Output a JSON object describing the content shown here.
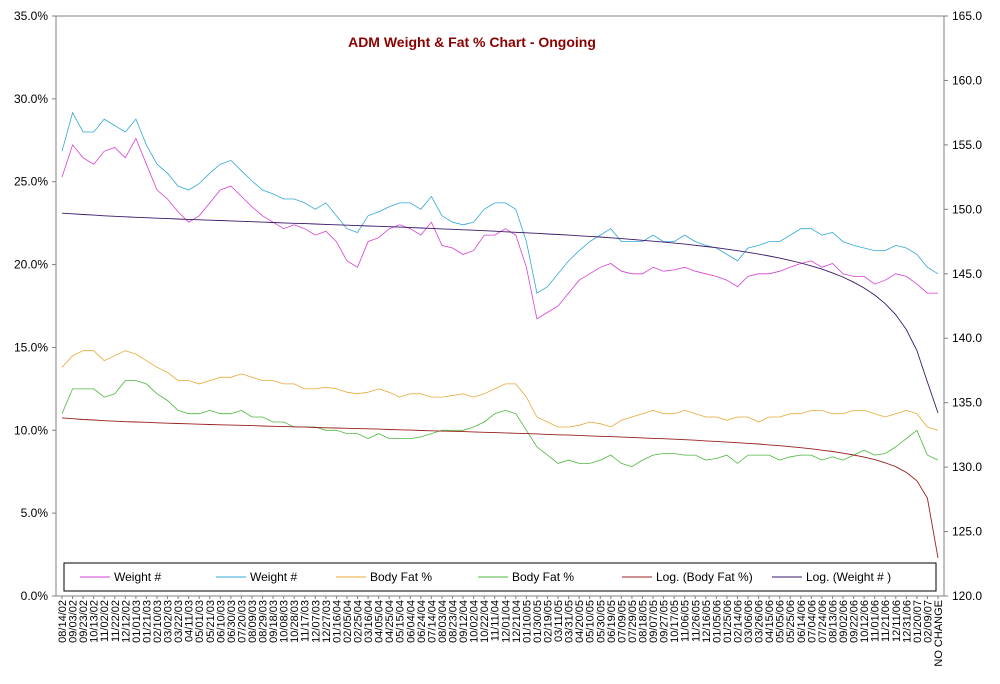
{
  "chart_data": {
    "type": "line",
    "title": "ADM Weight & Fat % Chart - Ongoing",
    "left_axis": {
      "min": 0,
      "max": 35,
      "step": 5,
      "tick_labels": [
        "0.0%",
        "5.0%",
        "10.0%",
        "15.0%",
        "20.0%",
        "25.0%",
        "30.0%",
        "35.0%"
      ]
    },
    "right_axis": {
      "min": 120,
      "max": 165,
      "step": 5,
      "tick_labels": [
        "120.0",
        "125.0",
        "130.0",
        "135.0",
        "140.0",
        "145.0",
        "150.0",
        "155.0",
        "160.0",
        "165.0"
      ]
    },
    "x_tick_labels": [
      "08/14/02",
      "09/03/02",
      "09/23/02",
      "10/13/02",
      "11/02/02",
      "11/22/02",
      "12/12/02",
      "01/01/03",
      "01/21/03",
      "02/10/03",
      "03/02/03",
      "03/22/03",
      "04/11/03",
      "05/01/03",
      "05/21/03",
      "06/10/03",
      "06/30/03",
      "07/20/03",
      "08/09/03",
      "08/29/03",
      "09/18/03",
      "10/08/03",
      "10/28/03",
      "11/17/03",
      "12/07/03",
      "12/27/03",
      "01/16/04",
      "02/05/04",
      "02/25/04",
      "03/16/04",
      "04/05/04",
      "04/25/04",
      "05/15/04",
      "06/04/04",
      "06/24/04",
      "07/14/04",
      "08/03/04",
      "08/23/04",
      "09/12/04",
      "10/02/04",
      "10/22/04",
      "11/11/04",
      "12/01/04",
      "12/21/04",
      "01/10/05",
      "01/30/05",
      "02/19/05",
      "03/11/05",
      "03/31/05",
      "04/20/05",
      "05/10/05",
      "05/30/05",
      "06/19/05",
      "07/09/05",
      "07/29/05",
      "08/18/05",
      "09/07/05",
      "09/27/05",
      "10/17/05",
      "11/06/05",
      "11/26/05",
      "12/16/05",
      "01/05/06",
      "01/25/06",
      "02/14/06",
      "03/06/06",
      "03/26/06",
      "04/15/06",
      "05/05/06",
      "05/25/06",
      "06/14/06",
      "07/04/06",
      "07/24/06",
      "08/13/06",
      "09/02/06",
      "09/22/06",
      "10/12/06",
      "11/01/06",
      "11/21/06",
      "12/11/06",
      "12/31/06",
      "01/20/07",
      "02/09/07",
      "NO CHANGE"
    ],
    "legend": [
      "Weight #",
      "Weight #",
      "Body Fat %",
      "Body Fat %",
      "Log. (Body Fat %)",
      "Log. (Weight # )"
    ],
    "legend_position": "bottom",
    "series": [
      {
        "name": "Weight #",
        "axis": "right",
        "color": "#d63fd6",
        "values": [
          152.5,
          155.0,
          154.0,
          153.5,
          154.5,
          154.8,
          154.0,
          155.5,
          153.5,
          151.5,
          150.8,
          149.8,
          149.0,
          149.5,
          150.5,
          151.5,
          151.8,
          151.0,
          150.2,
          149.5,
          149.0,
          148.5,
          148.8,
          148.5,
          148.0,
          148.3,
          147.5,
          146.0,
          145.5,
          147.5,
          147.8,
          148.5,
          148.8,
          148.5,
          148.0,
          149.0,
          147.2,
          147.0,
          146.5,
          146.8,
          148.0,
          148.0,
          148.5,
          148.0,
          145.5,
          141.5,
          142.0,
          142.5,
          143.5,
          144.5,
          145.0,
          145.5,
          145.8,
          145.2,
          145.0,
          145.0,
          145.5,
          145.2,
          145.3,
          145.5,
          145.2,
          145.0,
          144.8,
          144.5,
          144.0,
          144.8,
          145.0,
          145.0,
          145.2,
          145.5,
          145.8,
          146.0,
          145.5,
          145.8,
          145.0,
          144.8,
          144.8,
          144.2,
          144.5,
          145.0,
          144.8,
          144.2,
          143.5,
          143.5
        ]
      },
      {
        "name": "Weight #",
        "axis": "right",
        "color": "#33a8d8",
        "values": [
          154.5,
          157.5,
          156.0,
          156.0,
          157.0,
          156.5,
          156.0,
          157.0,
          155.0,
          153.5,
          152.8,
          151.8,
          151.5,
          152.0,
          152.8,
          153.5,
          153.8,
          153.0,
          152.2,
          151.5,
          151.2,
          150.8,
          150.8,
          150.5,
          150.0,
          150.5,
          149.5,
          148.5,
          148.2,
          149.5,
          149.8,
          150.2,
          150.5,
          150.5,
          150.0,
          151.0,
          149.5,
          149.0,
          148.8,
          149.0,
          150.0,
          150.5,
          150.5,
          150.0,
          147.5,
          143.5,
          144.0,
          145.0,
          146.0,
          146.8,
          147.5,
          148.0,
          148.5,
          147.5,
          147.5,
          147.5,
          148.0,
          147.5,
          147.5,
          148.0,
          147.5,
          147.2,
          147.0,
          146.5,
          146.0,
          147.0,
          147.2,
          147.5,
          147.5,
          148.0,
          148.5,
          148.5,
          148.0,
          148.2,
          147.5,
          147.2,
          147.0,
          146.8,
          146.8,
          147.2,
          147.0,
          146.5,
          145.5,
          145.0
        ]
      },
      {
        "name": "Body Fat %",
        "axis": "left",
        "color": "#e8a838",
        "values": [
          13.8,
          14.5,
          14.8,
          14.8,
          14.2,
          14.5,
          14.8,
          14.6,
          14.2,
          13.8,
          13.5,
          13.0,
          13.0,
          12.8,
          13.0,
          13.2,
          13.2,
          13.4,
          13.2,
          13.0,
          13.0,
          12.8,
          12.8,
          12.5,
          12.5,
          12.6,
          12.5,
          12.3,
          12.2,
          12.3,
          12.5,
          12.3,
          12.0,
          12.2,
          12.2,
          12.0,
          12.0,
          12.1,
          12.2,
          12.0,
          12.2,
          12.5,
          12.8,
          12.8,
          12.0,
          10.8,
          10.5,
          10.2,
          10.2,
          10.3,
          10.5,
          10.4,
          10.2,
          10.6,
          10.8,
          11.0,
          11.2,
          11.0,
          11.0,
          11.2,
          11.0,
          10.8,
          10.8,
          10.6,
          10.8,
          10.8,
          10.5,
          10.8,
          10.8,
          11.0,
          11.0,
          11.2,
          11.2,
          11.0,
          11.0,
          11.2,
          11.2,
          11.0,
          10.8,
          11.0,
          11.2,
          11.0,
          10.2,
          10.0
        ]
      },
      {
        "name": "Body Fat %",
        "axis": "left",
        "color": "#4cb83c",
        "values": [
          11.0,
          12.5,
          12.5,
          12.5,
          12.0,
          12.2,
          13.0,
          13.0,
          12.8,
          12.2,
          11.8,
          11.2,
          11.0,
          11.0,
          11.2,
          11.0,
          11.0,
          11.2,
          10.8,
          10.8,
          10.5,
          10.5,
          10.2,
          10.2,
          10.2,
          10.0,
          10.0,
          9.8,
          9.8,
          9.5,
          9.8,
          9.5,
          9.5,
          9.5,
          9.6,
          9.8,
          10.0,
          10.0,
          10.0,
          10.2,
          10.5,
          11.0,
          11.2,
          11.0,
          10.0,
          9.0,
          8.5,
          8.0,
          8.2,
          8.0,
          8.0,
          8.2,
          8.5,
          8.0,
          7.8,
          8.2,
          8.5,
          8.6,
          8.6,
          8.5,
          8.5,
          8.2,
          8.3,
          8.5,
          8.0,
          8.5,
          8.5,
          8.5,
          8.2,
          8.4,
          8.5,
          8.5,
          8.2,
          8.4,
          8.2,
          8.5,
          8.8,
          8.5,
          8.6,
          9.0,
          9.5,
          10.0,
          8.5,
          8.2
        ]
      },
      {
        "name": "Log. (Body Fat %)",
        "axis": "left",
        "color": "#9a2020",
        "values": [
          10.75,
          10.7,
          10.65,
          10.62,
          10.58,
          10.55,
          10.52,
          10.5,
          10.48,
          10.45,
          10.43,
          10.41,
          10.39,
          10.37,
          10.35,
          10.33,
          10.31,
          10.3,
          10.28,
          10.26,
          10.24,
          10.22,
          10.21,
          10.19,
          10.17,
          10.15,
          10.14,
          10.12,
          10.1,
          10.09,
          10.07,
          10.05,
          10.03,
          10.01,
          9.99,
          9.97,
          9.95,
          9.94,
          9.92,
          9.9,
          9.88,
          9.86,
          9.84,
          9.82,
          9.8,
          9.78,
          9.75,
          9.73,
          9.71,
          9.69,
          9.66,
          9.64,
          9.62,
          9.59,
          9.57,
          9.54,
          9.51,
          9.49,
          9.46,
          9.43,
          9.4,
          9.36,
          9.33,
          9.29,
          9.25,
          9.21,
          9.17,
          9.12,
          9.07,
          9.01,
          8.95,
          8.88,
          8.8,
          8.72,
          8.62,
          8.51,
          8.38,
          8.23,
          8.04,
          7.8,
          7.46,
          6.95,
          5.9,
          2.3
        ]
      },
      {
        "name": "Log. (Weight # )",
        "axis": "right",
        "color": "#3a1a6a",
        "values": [
          149.7,
          149.65,
          149.6,
          149.55,
          149.5,
          149.46,
          149.42,
          149.38,
          149.35,
          149.31,
          149.28,
          149.25,
          149.22,
          149.19,
          149.16,
          149.13,
          149.1,
          149.07,
          149.04,
          149.01,
          148.98,
          148.95,
          148.92,
          148.89,
          148.86,
          148.83,
          148.8,
          148.77,
          148.74,
          148.71,
          148.68,
          148.65,
          148.62,
          148.58,
          148.55,
          148.52,
          148.48,
          148.45,
          148.41,
          148.38,
          148.34,
          148.3,
          148.26,
          148.22,
          148.18,
          148.14,
          148.09,
          148.05,
          148.0,
          147.95,
          147.9,
          147.85,
          147.79,
          147.73,
          147.67,
          147.6,
          147.53,
          147.46,
          147.38,
          147.3,
          147.21,
          147.12,
          147.02,
          146.91,
          146.79,
          146.67,
          146.53,
          146.38,
          146.22,
          146.04,
          145.84,
          145.61,
          145.36,
          145.07,
          144.74,
          144.35,
          143.9,
          143.35,
          142.68,
          141.82,
          140.68,
          139.05,
          136.6,
          134.2
        ]
      }
    ]
  }
}
